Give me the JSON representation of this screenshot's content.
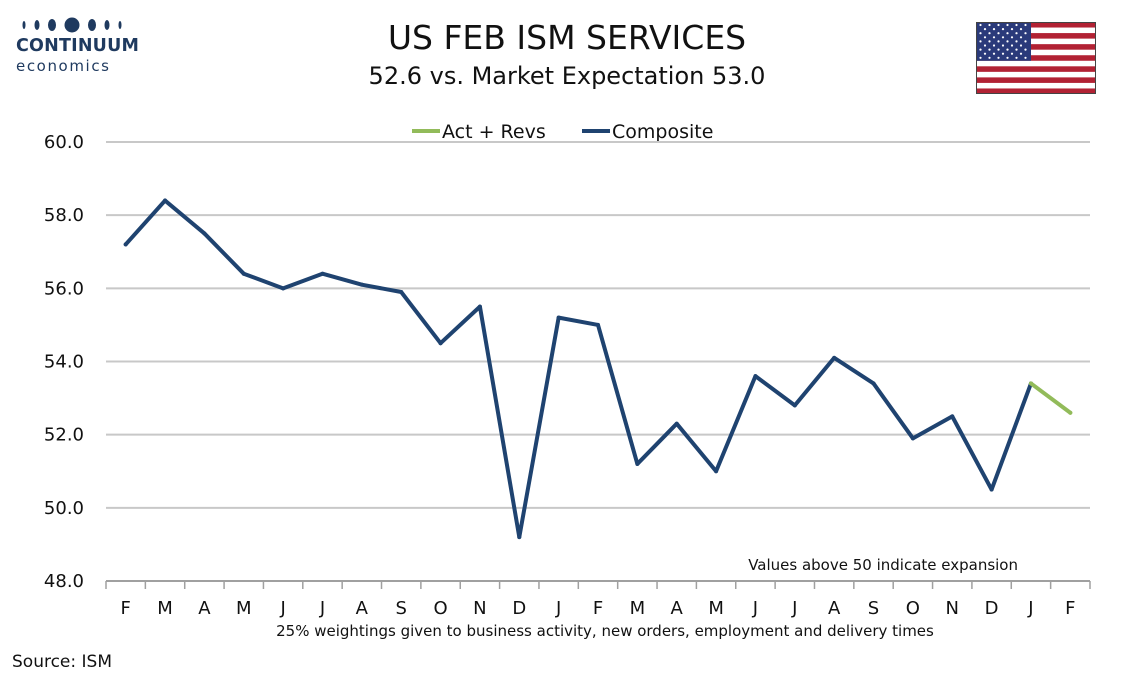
{
  "logo": {
    "name": "CONTINUUM",
    "sub": "economics"
  },
  "header": {
    "title": "US FEB ISM SERVICES",
    "subtitle": "52.6 vs. Market Expectation 53.0"
  },
  "flag": "us-flag",
  "source": "Source: ISM",
  "colors": {
    "composite": "#1f4370",
    "act_revs": "#92bb5a",
    "grid": "#c8c8c8"
  },
  "chart_data": {
    "type": "line",
    "categories": [
      "F",
      "M",
      "A",
      "M",
      "J",
      "J",
      "A",
      "S",
      "O",
      "N",
      "D",
      "J",
      "F",
      "M",
      "A",
      "M",
      "J",
      "J",
      "A",
      "S",
      "O",
      "N",
      "D",
      "J",
      "F"
    ],
    "ylim": [
      48.0,
      60.0
    ],
    "yticks": [
      "60.0",
      "58.0",
      "56.0",
      "54.0",
      "52.0",
      "50.0",
      "48.0"
    ],
    "grid": true,
    "legend_position": "top-center",
    "series": [
      {
        "name": "Act + Revs",
        "color": "#92bb5a",
        "values": [
          null,
          null,
          null,
          null,
          null,
          null,
          null,
          null,
          null,
          null,
          null,
          null,
          null,
          null,
          null,
          null,
          null,
          null,
          null,
          null,
          null,
          null,
          null,
          53.4,
          52.6
        ]
      },
      {
        "name": "Composite",
        "color": "#1f4370",
        "values": [
          57.2,
          58.4,
          57.5,
          56.4,
          56.0,
          56.4,
          56.1,
          55.9,
          54.5,
          55.5,
          49.2,
          55.2,
          55.0,
          51.2,
          52.3,
          51.0,
          53.6,
          52.8,
          54.1,
          53.4,
          51.9,
          52.5,
          50.5,
          53.4,
          null
        ]
      }
    ],
    "annotation": "Values above 50 indicate expansion",
    "footnote": "25% weightings given to business activity, new orders, employment and delivery times"
  }
}
